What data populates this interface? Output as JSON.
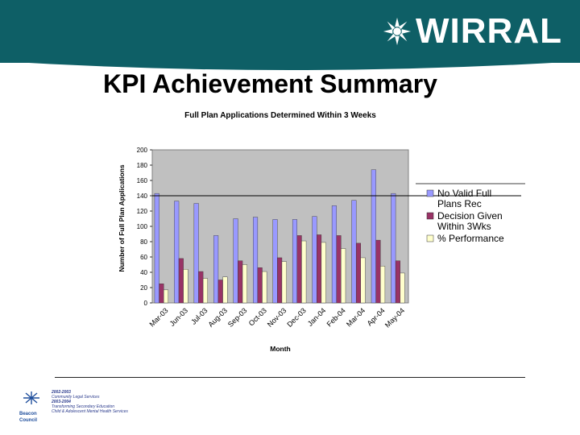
{
  "header": {
    "logo_text": "WIRRAL",
    "brand_color": "#0e5f66"
  },
  "slide": {
    "title": "KPI Achievement Summary"
  },
  "footer": {
    "beacon_line1": "Beacon",
    "beacon_line2": "Council",
    "lines": [
      "2002-2003",
      "Community Legal Services",
      "2003-2004",
      "Transforming Secondary Education",
      "Child & Adolescent Mental Health Services"
    ]
  },
  "chart_data": {
    "type": "bar",
    "title": "Full Plan Applications Determined Within 3 Weeks",
    "xlabel": "Month",
    "ylabel": "Number of Full Plan Applications",
    "ylim": [
      0,
      200
    ],
    "yticks": [
      0,
      20,
      40,
      60,
      80,
      100,
      120,
      140,
      160,
      180,
      200
    ],
    "reference_line": 140,
    "grid": false,
    "legend_position": "right",
    "categories": [
      "Mar-03",
      "Jun-03",
      "Jul-03",
      "Aug-03",
      "Sep-03",
      "Oct-03",
      "Nov-03",
      "Dec-03",
      "Jan-04",
      "Feb-04",
      "Mar-04",
      "Apr-04",
      "May-04"
    ],
    "series": [
      {
        "name": "No Valid Full Plans Rec",
        "color": "#9999ff",
        "values": [
          143,
          133,
          130,
          88,
          110,
          112,
          109,
          109,
          113,
          127,
          134,
          174,
          143
        ]
      },
      {
        "name": "Decision Given Within 3Wks",
        "color": "#993366",
        "values": [
          25,
          58,
          41,
          30,
          55,
          46,
          59,
          88,
          89,
          88,
          78,
          82,
          55
        ]
      },
      {
        "name": "% Performance",
        "color": "#ffffcc",
        "values": [
          17,
          44,
          32,
          34,
          50,
          41,
          54,
          81,
          79,
          71,
          59,
          48,
          39
        ]
      }
    ]
  }
}
